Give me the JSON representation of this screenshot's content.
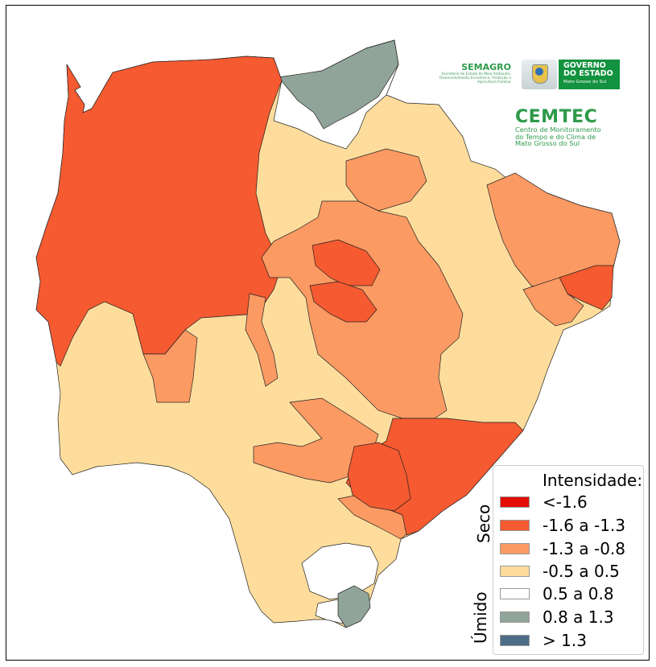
{
  "header": {
    "semagro_title": "SEMAGRO",
    "semagro_subtitle": "Secretaria de Estado de Meio Ambiente, Desenvolvimento Econômico, Produção e Agricultura Familiar",
    "gov_line1": "GOVERNO",
    "gov_line2": "DO ESTADO",
    "gov_line3": "Mato Grosso do Sul",
    "cemtec_title": "CEMTEC",
    "cemtec_line1": "Centro de Monitoramento",
    "cemtec_line2": "do Tempo e do Clima de",
    "cemtec_line3": "Mato Grosso do Sul"
  },
  "legend": {
    "title": "Intensidade:",
    "dry_label": "Seco",
    "wet_label": "Úmido",
    "classes": [
      {
        "label": "<-1.6",
        "color": "#e30d05"
      },
      {
        "label": "-1.6 a -1.3",
        "color": "#f55a30"
      },
      {
        "label": "-1.3 a -0.8",
        "color": "#fc9a63"
      },
      {
        "label": "-0.5 a 0.5",
        "color": "#fedd9c"
      },
      {
        "label": "0.5 a 0.8",
        "color": "#ffffff"
      },
      {
        "label": "0.8 a 1.3",
        "color": "#90a49a"
      },
      {
        "label": "> 1.3",
        "color": "#4e6d86"
      }
    ]
  }
}
